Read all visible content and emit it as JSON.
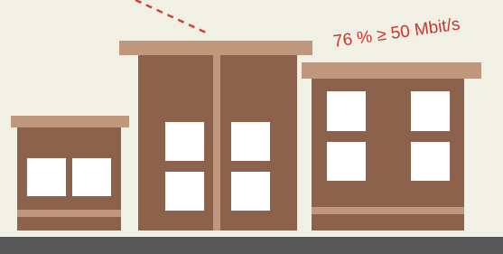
{
  "annotation": {
    "text": "76 % ≥ 50 Mbit/s"
  }
}
